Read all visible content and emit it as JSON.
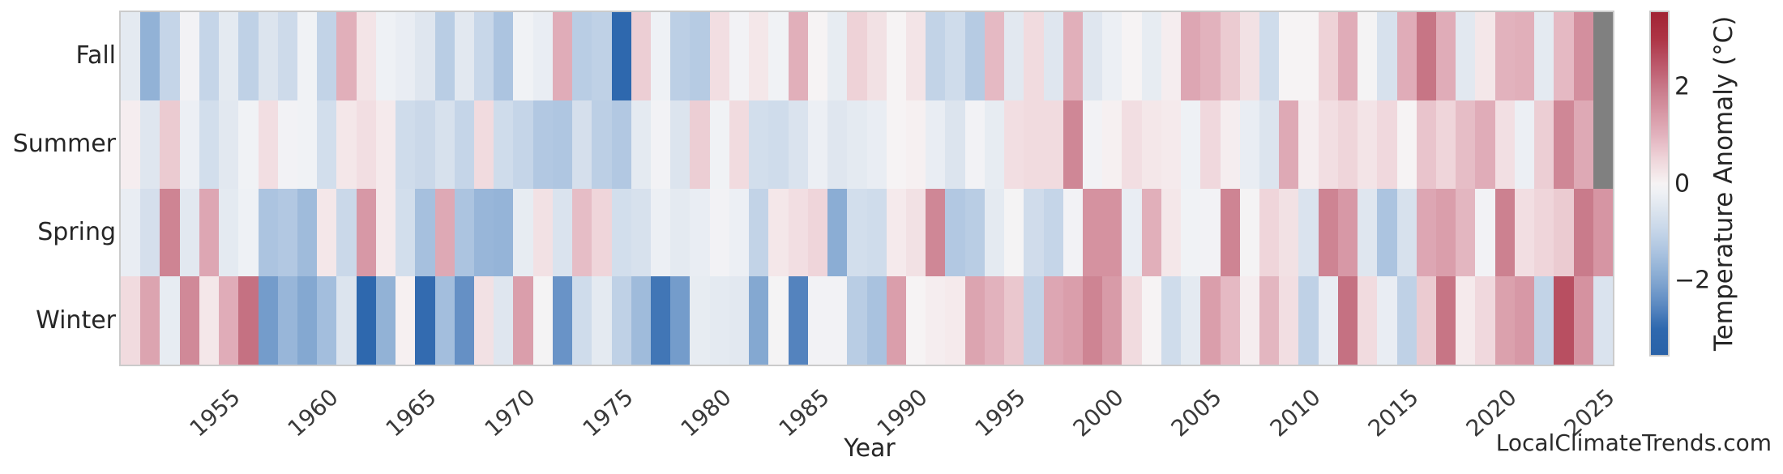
{
  "watermark": "LocalClimateTrends.com",
  "chart_data": {
    "type": "heatmap",
    "title": "",
    "xlabel": "Year",
    "ylabel": "",
    "colorbar_label": "Temperature Anomaly (°C)",
    "legend_position": "right-colorbar",
    "grid": false,
    "rows": [
      "Fall",
      "Summer",
      "Spring",
      "Winter"
    ],
    "year_start": 1950,
    "year_end": 2025,
    "x_tick_labels": [
      "1955",
      "1960",
      "1965",
      "1970",
      "1975",
      "1980",
      "1985",
      "1990",
      "1995",
      "2000",
      "2005",
      "2010",
      "2015",
      "2020",
      "2025"
    ],
    "colorbar_ticks": [
      {
        "label": "2",
        "value": 2
      },
      {
        "label": "0",
        "value": 0
      },
      {
        "label": "−2",
        "value": -2
      }
    ],
    "colorbar_range": [
      -3.55,
      3.55
    ],
    "missing_color": "#808080",
    "colormap_stops": [
      [
        -3.55,
        "#2a62a8"
      ],
      [
        -3.0,
        "#2e68ae"
      ],
      [
        -2.5,
        "#5d8ac2"
      ],
      [
        -2.0,
        "#84a8d1"
      ],
      [
        -1.5,
        "#a6c0de"
      ],
      [
        -1.0,
        "#c5d5e8"
      ],
      [
        -0.5,
        "#dfe6ef"
      ],
      [
        -0.2,
        "#eef1f5"
      ],
      [
        0.0,
        "#f6f3f4"
      ],
      [
        0.2,
        "#f4e7e9"
      ],
      [
        0.5,
        "#efd5da"
      ],
      [
        1.0,
        "#e2b2bd"
      ],
      [
        1.5,
        "#d695a3"
      ],
      [
        2.0,
        "#c87888"
      ],
      [
        2.5,
        "#bb5568"
      ],
      [
        3.0,
        "#ad3545"
      ],
      [
        3.55,
        "#a12434"
      ]
    ],
    "series": [
      {
        "name": "Fall",
        "values": [
          -0.4,
          -1.8,
          -1.0,
          -0.1,
          -1.0,
          -0.4,
          -1.1,
          -0.55,
          -0.85,
          -0.15,
          -1.05,
          1.05,
          0.25,
          -0.2,
          -0.3,
          -0.5,
          -1.2,
          -0.45,
          -0.95,
          -1.4,
          -0.15,
          -0.3,
          1.1,
          -1.2,
          -1.1,
          -3.0,
          0.6,
          -0.2,
          -1.15,
          -1.25,
          0.35,
          -0.1,
          0.2,
          -0.15,
          1.05,
          0.0,
          -0.35,
          0.55,
          0.3,
          0.0,
          0.25,
          -1.05,
          -0.8,
          -1.25,
          0.9,
          -0.45,
          0.4,
          -0.5,
          1.05,
          -0.5,
          -0.25,
          0.0,
          -0.35,
          0.1,
          1.2,
          1.0,
          0.65,
          0.3,
          -0.8,
          0.0,
          0.0,
          0.55,
          1.1,
          -0.05,
          -0.65,
          1.1,
          2.05,
          1.1,
          -0.45,
          0.2,
          1.0,
          1.05,
          -0.4,
          0.9,
          1.6,
          null
        ]
      },
      {
        "name": "Summer",
        "values": [
          0.1,
          -0.5,
          0.65,
          -0.25,
          -0.75,
          -0.45,
          -0.15,
          0.35,
          -0.1,
          -0.15,
          -0.75,
          0.2,
          0.35,
          0.15,
          -0.8,
          -0.9,
          -0.65,
          -1.0,
          0.4,
          -0.8,
          -1.0,
          -1.3,
          -1.35,
          -0.7,
          -1.15,
          -1.3,
          -0.4,
          -0.1,
          -0.55,
          0.6,
          -0.15,
          0.4,
          -0.75,
          -0.8,
          -0.6,
          -0.25,
          -0.5,
          -0.4,
          -0.3,
          0.0,
          0.05,
          -0.3,
          -0.55,
          -0.1,
          -0.35,
          0.35,
          0.4,
          0.4,
          1.75,
          -0.1,
          0.05,
          0.35,
          0.2,
          0.15,
          -0.2,
          0.45,
          0.1,
          -0.3,
          -0.55,
          1.15,
          0.1,
          0.35,
          0.5,
          0.25,
          0.45,
          0.0,
          0.75,
          0.5,
          0.85,
          1.1,
          0.33,
          -0.25,
          0.6,
          1.75,
          1.15,
          null
        ]
      },
      {
        "name": "Spring",
        "values": [
          -0.3,
          -0.7,
          1.8,
          -0.45,
          1.2,
          -0.4,
          -0.2,
          -1.4,
          -1.3,
          -1.6,
          0.2,
          -0.9,
          1.45,
          0.15,
          -0.75,
          -1.5,
          1.15,
          -1.4,
          -1.7,
          -1.75,
          -0.35,
          0.3,
          -0.6,
          0.85,
          0.5,
          -0.75,
          -0.65,
          -0.25,
          -0.4,
          -0.3,
          -0.1,
          -0.25,
          -1.05,
          0.2,
          0.35,
          0.5,
          -1.9,
          -0.75,
          -0.8,
          0.15,
          0.3,
          1.75,
          -1.3,
          -1.2,
          -0.4,
          -0.05,
          -0.78,
          -1.0,
          -0.1,
          1.55,
          1.55,
          -0.3,
          1.05,
          0.2,
          -0.15,
          -0.1,
          1.8,
          -0.05,
          0.5,
          0.3,
          -0.6,
          1.8,
          1.45,
          -0.5,
          -1.4,
          -0.65,
          1.2,
          1.35,
          0.95,
          -0.1,
          1.85,
          0.35,
          0.5,
          0.65,
          1.95,
          1.5
        ]
      },
      {
        "name": "Winter",
        "values": [
          0.4,
          1.25,
          -0.35,
          1.7,
          0.2,
          1.1,
          2.1,
          -2.2,
          -1.7,
          -2.0,
          -1.55,
          -0.55,
          -3.0,
          -1.8,
          0.05,
          -2.95,
          -1.55,
          -2.4,
          0.3,
          -0.5,
          1.35,
          -0.05,
          -2.35,
          -0.8,
          -0.4,
          -1.1,
          -1.6,
          -2.8,
          -2.2,
          -0.35,
          -0.4,
          -0.45,
          -2.0,
          -0.05,
          -2.6,
          -0.1,
          -0.1,
          -1.2,
          -1.45,
          1.35,
          0.0,
          0.1,
          0.15,
          1.25,
          1.0,
          0.7,
          -1.05,
          1.2,
          1.35,
          1.8,
          1.4,
          0.4,
          0.0,
          -0.8,
          -0.4,
          1.35,
          0.9,
          0.1,
          0.95,
          0.35,
          -1.1,
          -0.3,
          2.1,
          0.4,
          -0.3,
          -1.1,
          0.65,
          2.05,
          0.15,
          0.45,
          1.3,
          1.45,
          -1.05,
          2.6,
          1.55,
          -0.6
        ]
      }
    ]
  }
}
